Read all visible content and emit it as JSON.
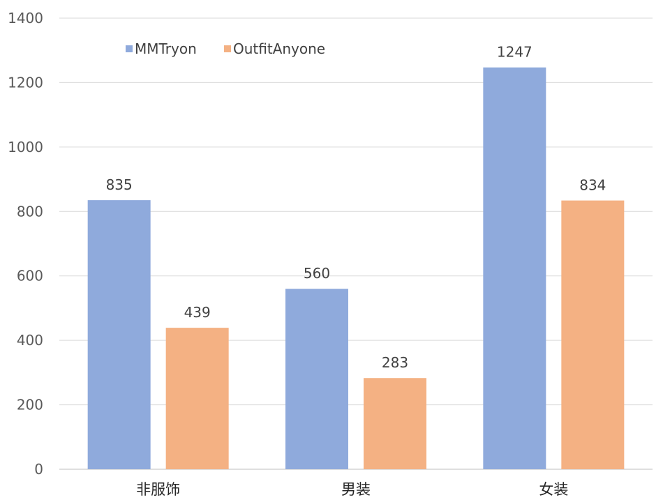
{
  "chart_data": {
    "type": "bar",
    "categories": [
      "非服饰",
      "男装",
      "女装"
    ],
    "series": [
      {
        "name": "MMTryon",
        "values": [
          835,
          560,
          1247
        ],
        "color": "#8faadc"
      },
      {
        "name": "OutfitAnyone",
        "values": [
          439,
          283,
          834
        ],
        "color": "#f4b183"
      }
    ],
    "yticks": [
      0,
      200,
      400,
      600,
      800,
      1000,
      1200,
      1400
    ],
    "ylim": [
      0,
      1400
    ],
    "grid": true,
    "legend_position": "top-left",
    "data_labels": true
  }
}
